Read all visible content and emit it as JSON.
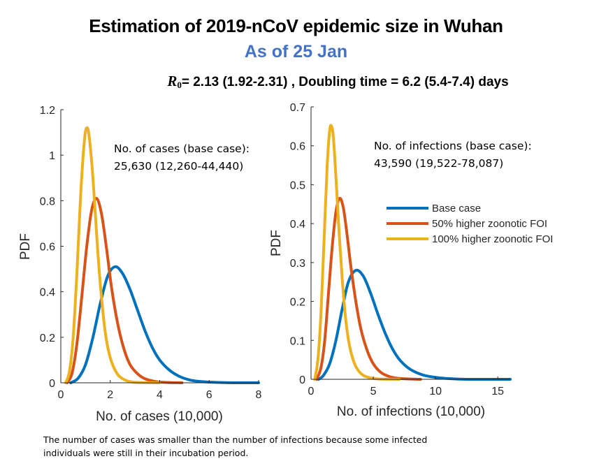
{
  "header": {
    "title": "Estimation of 2019-nCoV epidemic size in Wuhan",
    "subtitle": "As of 25 Jan",
    "params_symbol": "R",
    "params_subscript": "0",
    "params_text": "= 2.13 (1.92-2.31) , Doubling time  = 6.2 (5.4-7.4) days"
  },
  "colors": {
    "base_case": "#0072BD",
    "foi_50": "#D95319",
    "foi_100": "#EDB120",
    "title_accent": "#4472C4"
  },
  "footnote": {
    "line1": "The number of cases was smaller than the number of infections because some infected",
    "line2": "individuals were still in their incubation period."
  },
  "chart_data": [
    {
      "type": "line",
      "title": "",
      "xlabel": "No. of cases (10,000)",
      "ylabel": "PDF",
      "xlim": [
        0,
        8
      ],
      "ylim": [
        0,
        1.2
      ],
      "xticks": [
        0,
        2,
        4,
        6,
        8
      ],
      "xtick_labels": [
        "0",
        "2",
        "4",
        "6",
        "8"
      ],
      "yticks": [
        0,
        0.2,
        0.4,
        0.6,
        0.8,
        1,
        1.2
      ],
      "ytick_labels": [
        "0",
        "0.2",
        "0.4",
        "0.6",
        "0.8",
        "1",
        "1.2"
      ],
      "grid": false,
      "annotation": [
        "No. of cases (base case):",
        "25,630 (12,260-44,440)"
      ],
      "series": [
        {
          "name": "Base case",
          "color": "#0072BD",
          "x": [
            0.4,
            0.7,
            1.0,
            1.3,
            1.6,
            1.9,
            2.2,
            2.5,
            2.8,
            3.1,
            3.4,
            3.7,
            4.0,
            4.4,
            4.8,
            5.2,
            5.6,
            6.0,
            7.0,
            8.0
          ],
          "y": [
            0.0,
            0.02,
            0.08,
            0.2,
            0.35,
            0.47,
            0.51,
            0.48,
            0.41,
            0.32,
            0.23,
            0.155,
            0.1,
            0.055,
            0.028,
            0.013,
            0.006,
            0.003,
            0.0,
            0.0
          ]
        },
        {
          "name": "50% higher zoonotic FOI",
          "color": "#D95319",
          "x": [
            0.25,
            0.45,
            0.65,
            0.85,
            1.05,
            1.25,
            1.45,
            1.65,
            1.85,
            2.05,
            2.3,
            2.55,
            2.8,
            3.1,
            3.4,
            3.8,
            4.2,
            4.9
          ],
          "y": [
            0.0,
            0.04,
            0.17,
            0.38,
            0.6,
            0.76,
            0.81,
            0.74,
            0.59,
            0.42,
            0.26,
            0.15,
            0.08,
            0.04,
            0.018,
            0.006,
            0.002,
            0.0
          ]
        },
        {
          "name": "100% higher zoonotic FOI",
          "color": "#EDB120",
          "x": [
            0.2,
            0.35,
            0.5,
            0.65,
            0.8,
            0.95,
            1.05,
            1.15,
            1.3,
            1.45,
            1.6,
            1.8,
            2.0,
            2.25,
            2.5,
            2.8,
            3.2,
            4.0
          ],
          "y": [
            0.0,
            0.05,
            0.2,
            0.48,
            0.82,
            1.06,
            1.12,
            1.08,
            0.9,
            0.65,
            0.43,
            0.22,
            0.11,
            0.045,
            0.018,
            0.005,
            0.001,
            0.0
          ]
        }
      ]
    },
    {
      "type": "line",
      "title": "",
      "xlabel": "No. of infections (10,000)",
      "ylabel": "PDF",
      "xlim": [
        0,
        16
      ],
      "ylim": [
        0,
        0.7
      ],
      "xticks": [
        0,
        5,
        10,
        15
      ],
      "xtick_labels": [
        "0",
        "5",
        "10",
        "15"
      ],
      "yticks": [
        0,
        0.1,
        0.2,
        0.3,
        0.4,
        0.5,
        0.6,
        0.7
      ],
      "ytick_labels": [
        "0",
        "0.1",
        "0.2",
        "0.3",
        "0.4",
        "0.5",
        "0.6",
        "0.7"
      ],
      "grid": false,
      "legend_position": "right-middle",
      "annotation": [
        "No. of infections (base case):",
        "43,590 (19,522-78,087)"
      ],
      "series": [
        {
          "name": "Base case",
          "color": "#0072BD",
          "x": [
            0.6,
            1.0,
            1.5,
            2.0,
            2.5,
            3.0,
            3.6,
            4.2,
            4.8,
            5.4,
            6.0,
            6.6,
            7.2,
            8.0,
            9.0,
            10.0,
            11.0,
            12.5,
            14.0,
            16.0
          ],
          "y": [
            0.0,
            0.01,
            0.04,
            0.1,
            0.18,
            0.25,
            0.28,
            0.265,
            0.22,
            0.165,
            0.115,
            0.075,
            0.047,
            0.025,
            0.011,
            0.005,
            0.002,
            0.0,
            0.0,
            0.0
          ]
        },
        {
          "name": "50% higher zoonotic FOI",
          "color": "#D95319",
          "x": [
            0.45,
            0.8,
            1.1,
            1.4,
            1.7,
            2.0,
            2.3,
            2.6,
            2.9,
            3.2,
            3.6,
            4.0,
            4.5,
            5.0,
            5.6,
            6.3,
            7.2,
            8.8
          ],
          "y": [
            0.0,
            0.03,
            0.1,
            0.22,
            0.34,
            0.43,
            0.465,
            0.44,
            0.37,
            0.29,
            0.2,
            0.13,
            0.075,
            0.04,
            0.018,
            0.007,
            0.002,
            0.0
          ]
        },
        {
          "name": "100% higher zoonotic FOI",
          "color": "#EDB120",
          "x": [
            0.3,
            0.55,
            0.8,
            1.05,
            1.3,
            1.5,
            1.65,
            1.8,
            2.0,
            2.25,
            2.5,
            2.8,
            3.1,
            3.5,
            4.0,
            4.6,
            5.4,
            7.1
          ],
          "y": [
            0.0,
            0.05,
            0.17,
            0.36,
            0.55,
            0.64,
            0.65,
            0.62,
            0.52,
            0.38,
            0.26,
            0.15,
            0.085,
            0.04,
            0.015,
            0.005,
            0.001,
            0.0
          ]
        }
      ]
    }
  ]
}
